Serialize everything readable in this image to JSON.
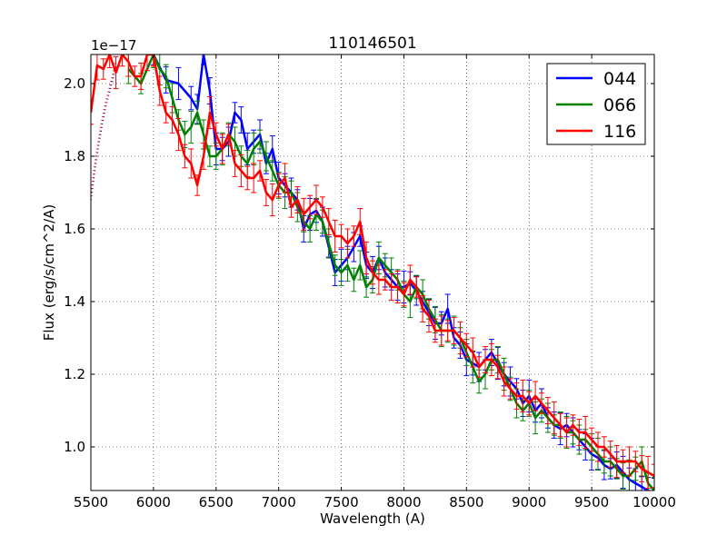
{
  "chart_data": {
    "type": "line",
    "title": "110146501",
    "xlabel": "Wavelength (A)",
    "ylabel": "Flux (erg/s/cm^2/A)",
    "offset_text": "1e−17",
    "xlim": [
      5500,
      10000
    ],
    "ylim": [
      0.88,
      2.08
    ],
    "xticks": [
      5500,
      6000,
      6500,
      7000,
      7500,
      8000,
      8500,
      9000,
      9500,
      10000
    ],
    "xtick_labels": [
      "5500",
      "6000",
      "6500",
      "7000",
      "7500",
      "8000",
      "8500",
      "9000",
      "9500",
      "10000"
    ],
    "yticks": [
      1.0,
      1.2,
      1.4,
      1.6,
      1.8,
      2.0
    ],
    "ytick_labels": [
      "1.0",
      "1.2",
      "1.4",
      "1.6",
      "1.8",
      "2.0"
    ],
    "grid": true,
    "legend_position": "top-right",
    "dotted_extrapolation": {
      "x": [
        5500,
        5530,
        5560,
        5590,
        5620,
        5650,
        5680,
        5700
      ],
      "y": [
        1.68,
        1.76,
        1.83,
        1.89,
        1.94,
        1.98,
        2.02,
        2.05
      ],
      "colors": [
        "#0000ff",
        "#ff0000"
      ]
    },
    "series": [
      {
        "name": "044",
        "color": "#0000ff",
        "x": [
          6000,
          6100,
          6200,
          6300,
          6350,
          6400,
          6450,
          6500,
          6550,
          6600,
          6650,
          6700,
          6750,
          6800,
          6850,
          6900,
          6950,
          7000,
          7050,
          7100,
          7150,
          7200,
          7250,
          7300,
          7350,
          7400,
          7450,
          7500,
          7550,
          7600,
          7650,
          7700,
          7750,
          7800,
          7850,
          7900,
          7950,
          8000,
          8050,
          8100,
          8150,
          8200,
          8250,
          8300,
          8350,
          8400,
          8450,
          8500,
          8550,
          8600,
          8650,
          8700,
          8750,
          8800,
          8850,
          8900,
          8950,
          9000,
          9050,
          9100,
          9150,
          9200,
          9250,
          9300,
          9350,
          9400,
          9450,
          9500,
          9550,
          9600,
          9650,
          9700,
          9750,
          9800,
          9850,
          9900,
          9950,
          10000
        ],
        "y": [
          2.08,
          2.01,
          2.0,
          1.96,
          1.93,
          2.08,
          1.98,
          1.82,
          1.82,
          1.84,
          1.92,
          1.9,
          1.82,
          1.84,
          1.86,
          1.78,
          1.82,
          1.74,
          1.72,
          1.7,
          1.68,
          1.6,
          1.64,
          1.65,
          1.62,
          1.55,
          1.48,
          1.5,
          1.52,
          1.55,
          1.58,
          1.5,
          1.48,
          1.52,
          1.48,
          1.46,
          1.44,
          1.44,
          1.45,
          1.43,
          1.4,
          1.37,
          1.34,
          1.34,
          1.38,
          1.3,
          1.28,
          1.24,
          1.23,
          1.22,
          1.24,
          1.26,
          1.23,
          1.2,
          1.18,
          1.16,
          1.12,
          1.14,
          1.1,
          1.12,
          1.08,
          1.06,
          1.05,
          1.06,
          1.04,
          1.02,
          1.0,
          0.98,
          0.97,
          0.95,
          0.94,
          0.95,
          0.93,
          0.91,
          0.9,
          0.89,
          0.88,
          0.87
        ]
      },
      {
        "name": "066",
        "color": "#008000",
        "x": [
          5800,
          5900,
          6000,
          6050,
          6100,
          6150,
          6200,
          6250,
          6300,
          6350,
          6400,
          6450,
          6500,
          6550,
          6600,
          6650,
          6700,
          6750,
          6800,
          6850,
          6900,
          6950,
          7000,
          7050,
          7100,
          7150,
          7200,
          7250,
          7300,
          7350,
          7400,
          7450,
          7500,
          7550,
          7600,
          7650,
          7700,
          7750,
          7800,
          7850,
          7900,
          7950,
          8000,
          8050,
          8100,
          8150,
          8200,
          8250,
          8300,
          8350,
          8400,
          8450,
          8500,
          8550,
          8600,
          8650,
          8700,
          8750,
          8800,
          8850,
          8900,
          8950,
          9000,
          9050,
          9100,
          9150,
          9200,
          9250,
          9300,
          9350,
          9400,
          9450,
          9500,
          9550,
          9600,
          9650,
          9700,
          9750,
          9800,
          9850,
          9900,
          9950,
          10000
        ],
        "y": [
          2.04,
          2.0,
          2.08,
          2.04,
          2.02,
          1.96,
          1.9,
          1.86,
          1.88,
          1.92,
          1.86,
          1.8,
          1.8,
          1.82,
          1.86,
          1.84,
          1.8,
          1.78,
          1.82,
          1.84,
          1.8,
          1.76,
          1.72,
          1.7,
          1.7,
          1.66,
          1.62,
          1.6,
          1.64,
          1.62,
          1.56,
          1.5,
          1.48,
          1.5,
          1.46,
          1.5,
          1.44,
          1.46,
          1.52,
          1.5,
          1.48,
          1.46,
          1.42,
          1.4,
          1.44,
          1.42,
          1.38,
          1.35,
          1.32,
          1.32,
          1.32,
          1.3,
          1.26,
          1.22,
          1.18,
          1.2,
          1.24,
          1.24,
          1.2,
          1.16,
          1.12,
          1.1,
          1.12,
          1.08,
          1.1,
          1.08,
          1.06,
          1.06,
          1.04,
          1.04,
          1.02,
          1.02,
          1.0,
          0.98,
          0.96,
          0.96,
          0.94,
          0.92,
          0.92,
          0.94,
          0.96,
          0.9,
          0.88
        ]
      },
      {
        "name": "116",
        "color": "#ff0000",
        "x": [
          5500,
          5550,
          5600,
          5650,
          5700,
          5750,
          5800,
          5850,
          5900,
          5950,
          6000,
          6050,
          6100,
          6150,
          6200,
          6250,
          6300,
          6350,
          6400,
          6450,
          6500,
          6550,
          6600,
          6650,
          6700,
          6750,
          6800,
          6850,
          6900,
          6950,
          7000,
          7050,
          7100,
          7150,
          7200,
          7250,
          7300,
          7350,
          7400,
          7450,
          7500,
          7550,
          7600,
          7650,
          7700,
          7750,
          7800,
          7850,
          7900,
          7950,
          8000,
          8050,
          8100,
          8150,
          8200,
          8250,
          8300,
          8350,
          8400,
          8450,
          8500,
          8550,
          8600,
          8650,
          8700,
          8750,
          8800,
          8850,
          8900,
          8950,
          9000,
          9050,
          9100,
          9150,
          9200,
          9250,
          9300,
          9350,
          9400,
          9450,
          9500,
          9550,
          9600,
          9650,
          9700,
          9750,
          9800,
          9850,
          9900,
          9950,
          10000
        ],
        "y": [
          1.92,
          2.05,
          2.04,
          2.08,
          2.03,
          2.08,
          2.06,
          2.02,
          2.02,
          2.08,
          2.08,
          1.98,
          1.92,
          1.9,
          1.86,
          1.8,
          1.78,
          1.72,
          1.8,
          1.92,
          1.86,
          1.82,
          1.86,
          1.78,
          1.76,
          1.74,
          1.74,
          1.76,
          1.7,
          1.68,
          1.72,
          1.74,
          1.66,
          1.68,
          1.64,
          1.66,
          1.68,
          1.66,
          1.62,
          1.58,
          1.58,
          1.56,
          1.58,
          1.62,
          1.52,
          1.48,
          1.46,
          1.46,
          1.44,
          1.44,
          1.42,
          1.46,
          1.44,
          1.38,
          1.36,
          1.32,
          1.32,
          1.32,
          1.32,
          1.3,
          1.28,
          1.26,
          1.22,
          1.24,
          1.24,
          1.22,
          1.18,
          1.16,
          1.14,
          1.14,
          1.12,
          1.14,
          1.12,
          1.1,
          1.08,
          1.06,
          1.04,
          1.06,
          1.04,
          1.04,
          1.02,
          1.0,
          1.0,
          0.98,
          0.96,
          0.96,
          0.96,
          0.96,
          0.94,
          0.93,
          0.92
        ]
      }
    ]
  }
}
